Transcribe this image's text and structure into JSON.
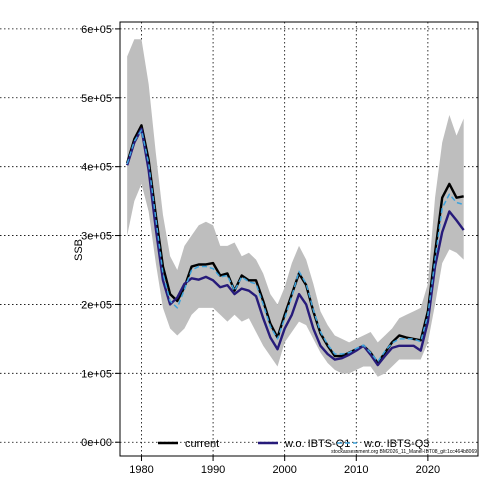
{
  "chart_data": {
    "type": "line",
    "title": "",
    "xlabel": "",
    "ylabel": "SSB",
    "xlim": [
      1977,
      2027
    ],
    "ylim": [
      -20000,
      610000
    ],
    "x_ticks": [
      "1980",
      "1990",
      "2000",
      "2010",
      "2020"
    ],
    "y_ticks": [
      "0e+00",
      "1e+05",
      "2e+05",
      "3e+05",
      "4e+05",
      "5e+05",
      "6e+05"
    ],
    "grid": true,
    "legend_position": "bottom",
    "footnote": "stockassessment.org BM2026_11_Manel-IBT08_git:1cc464b8069",
    "x": [
      1978,
      1979,
      1980,
      1981,
      1982,
      1983,
      1984,
      1985,
      1986,
      1987,
      1988,
      1989,
      1990,
      1991,
      1992,
      1993,
      1994,
      1995,
      1996,
      1997,
      1998,
      1999,
      2000,
      2001,
      2002,
      2003,
      2004,
      2005,
      2006,
      2007,
      2008,
      2009,
      2010,
      2011,
      2012,
      2013,
      2014,
      2015,
      2016,
      2017,
      2018,
      2019,
      2020,
      2021,
      2022,
      2023,
      2024,
      2025
    ],
    "band": {
      "name": "confidence interval",
      "color": "#bebebe",
      "upper": [
        560000,
        585000,
        585000,
        520000,
        420000,
        330000,
        270000,
        250000,
        285000,
        300000,
        315000,
        320000,
        315000,
        285000,
        285000,
        290000,
        270000,
        275000,
        265000,
        245000,
        215000,
        200000,
        225000,
        260000,
        285000,
        265000,
        230000,
        190000,
        170000,
        155000,
        150000,
        145000,
        150000,
        155000,
        160000,
        145000,
        155000,
        165000,
        180000,
        185000,
        190000,
        195000,
        230000,
        355000,
        435000,
        475000,
        445000,
        470000
      ],
      "lower": [
        300000,
        350000,
        375000,
        335000,
        260000,
        195000,
        165000,
        155000,
        165000,
        185000,
        195000,
        195000,
        195000,
        185000,
        175000,
        185000,
        175000,
        180000,
        160000,
        140000,
        125000,
        110000,
        145000,
        160000,
        175000,
        170000,
        150000,
        130000,
        115000,
        105000,
        100000,
        100000,
        105000,
        110000,
        110000,
        95000,
        100000,
        110000,
        120000,
        120000,
        120000,
        120000,
        145000,
        200000,
        260000,
        280000,
        275000,
        265000
      ]
    },
    "series": [
      {
        "name": "current",
        "color": "#000000",
        "style": "solid",
        "width": 2.4,
        "values": [
          405000,
          440000,
          460000,
          410000,
          330000,
          255000,
          215000,
          205000,
          225000,
          255000,
          258000,
          258000,
          260000,
          242000,
          245000,
          220000,
          242000,
          235000,
          235000,
          205000,
          172000,
          152000,
          185000,
          215000,
          245000,
          228000,
          190000,
          158000,
          140000,
          125000,
          125000,
          130000,
          135000,
          140000,
          130000,
          115000,
          130000,
          145000,
          155000,
          152000,
          150000,
          148000,
          190000,
          275000,
          355000,
          375000,
          355000,
          357000
        ]
      },
      {
        "name": "w.o. IBTS-Q1",
        "color": "#271b7a",
        "style": "solid",
        "width": 2.4,
        "values": [
          402000,
          435000,
          455000,
          395000,
          310000,
          235000,
          200000,
          210000,
          230000,
          238000,
          236000,
          240000,
          235000,
          225000,
          228000,
          215000,
          223000,
          220000,
          212000,
          180000,
          152000,
          135000,
          165000,
          185000,
          215000,
          200000,
          165000,
          140000,
          128000,
          120000,
          122000,
          127000,
          133000,
          140000,
          127000,
          112000,
          125000,
          137000,
          140000,
          140000,
          140000,
          133000,
          175000,
          255000,
          305000,
          335000,
          322000,
          308000
        ]
      },
      {
        "name": "w.o. IBTS-Q3",
        "color": "#3ea3dc",
        "style": "dashed",
        "width": 1.5,
        "values": [
          404000,
          437000,
          453000,
          405000,
          325000,
          245000,
          205000,
          195000,
          222000,
          250000,
          255000,
          255000,
          252000,
          240000,
          242000,
          220000,
          240000,
          233000,
          230000,
          200000,
          168000,
          150000,
          180000,
          212000,
          248000,
          230000,
          192000,
          160000,
          142000,
          128000,
          128000,
          130000,
          136000,
          141000,
          130000,
          117000,
          132000,
          144000,
          150000,
          150000,
          150000,
          146000,
          185000,
          265000,
          340000,
          360000,
          348000,
          345000
        ]
      }
    ]
  }
}
